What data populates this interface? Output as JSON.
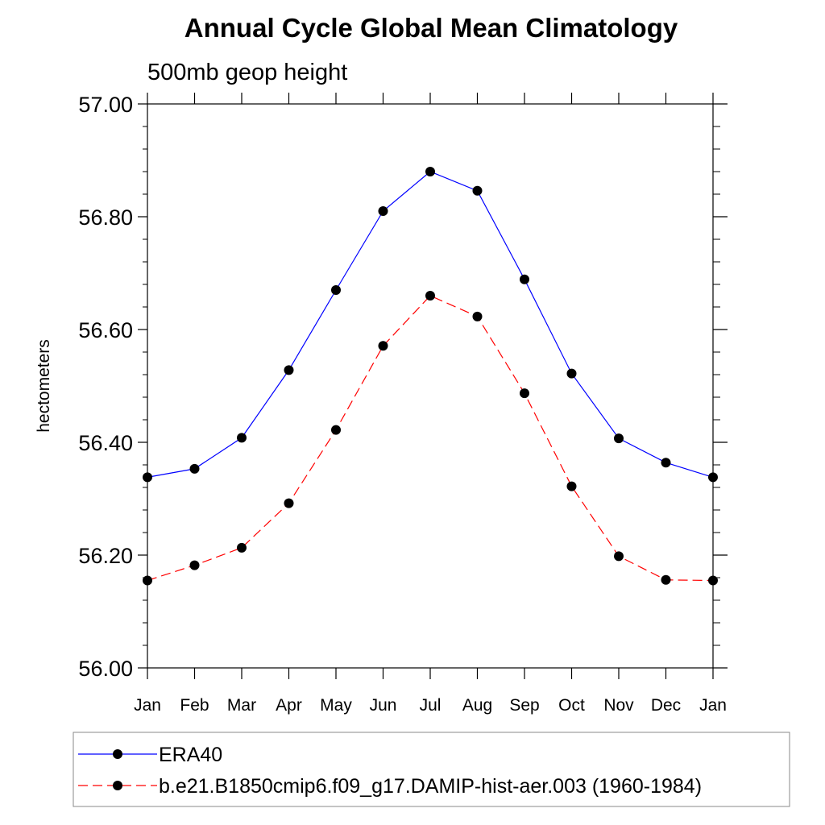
{
  "chart_data": {
    "type": "line",
    "title": "Annual Cycle Global Mean Climatology",
    "subtitle": "500mb geop height",
    "xlabel": "",
    "ylabel": "hectometers",
    "categories": [
      "Jan",
      "Feb",
      "Mar",
      "Apr",
      "May",
      "Jun",
      "Jul",
      "Aug",
      "Sep",
      "Oct",
      "Nov",
      "Dec",
      "Jan"
    ],
    "ylim": [
      56.0,
      57.0
    ],
    "y_ticks": [
      "56.00",
      "56.20",
      "56.40",
      "56.60",
      "56.80",
      "57.00"
    ],
    "grid": false,
    "legend_position": "bottom",
    "series": [
      {
        "name": "ERA40",
        "color": "#0000ff",
        "line_style": "solid",
        "marker": "filled-circle",
        "values": [
          56.338,
          56.353,
          56.408,
          56.528,
          56.67,
          56.81,
          56.88,
          56.846,
          56.689,
          56.522,
          56.407,
          56.364,
          56.338
        ]
      },
      {
        "name": "b.e21.B1850cmip6.f09_g17.DAMIP-hist-aer.003 (1960-1984)",
        "color": "#ff0000",
        "line_style": "dashed",
        "marker": "filled-circle",
        "values": [
          56.155,
          56.182,
          56.213,
          56.292,
          56.422,
          56.571,
          56.66,
          56.623,
          56.487,
          56.322,
          56.198,
          56.156,
          56.155
        ]
      }
    ]
  }
}
